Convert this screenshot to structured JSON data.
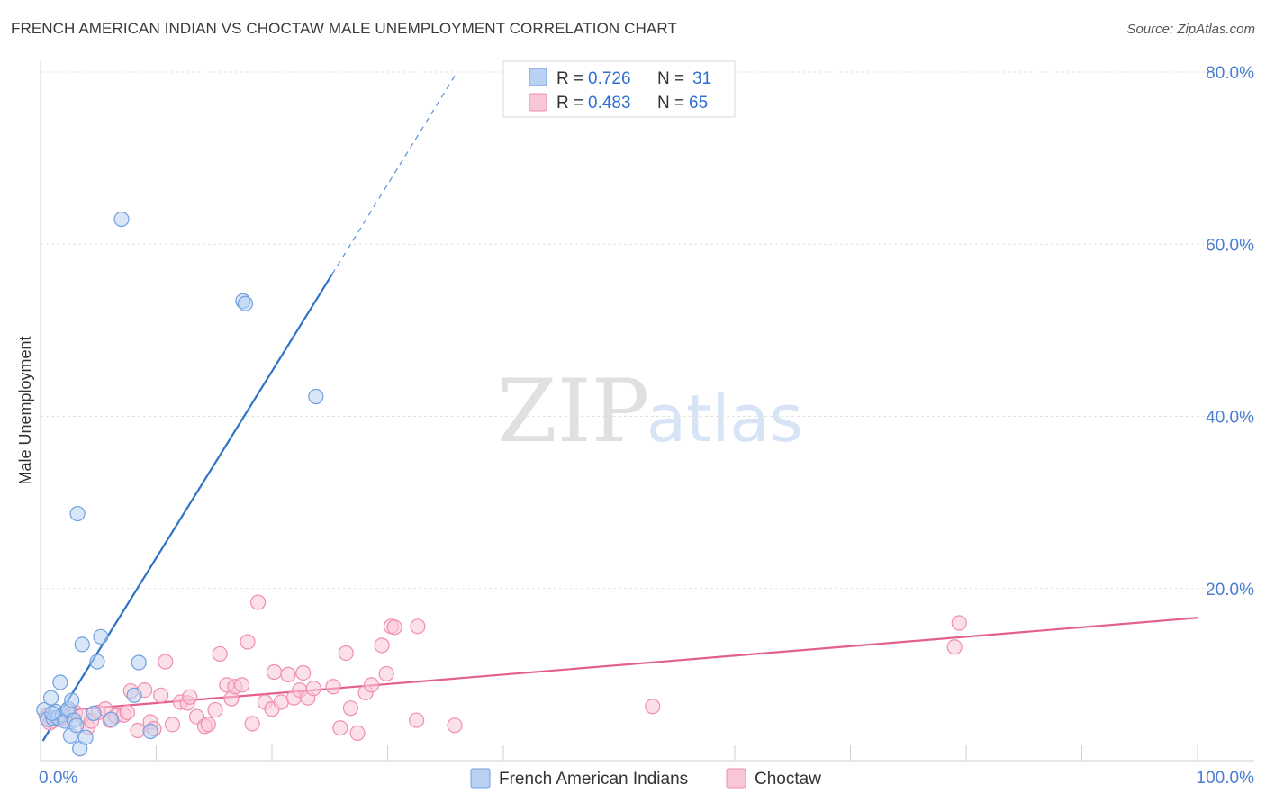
{
  "title": "FRENCH AMERICAN INDIAN VS CHOCTAW MALE UNEMPLOYMENT CORRELATION CHART",
  "source": "Source: ZipAtlas.com",
  "watermark": {
    "zip": "ZIP",
    "atlas": "atlas"
  },
  "chart_data": {
    "type": "scatter",
    "title": "FRENCH AMERICAN INDIAN VS CHOCTAW MALE UNEMPLOYMENT CORRELATION CHART",
    "xlabel": "",
    "ylabel": "Male Unemployment",
    "xlim": [
      0,
      100
    ],
    "ylim": [
      0,
      80
    ],
    "x_tick_labels": [
      "0.0%",
      "100.0%"
    ],
    "y_ticks": [
      20,
      40,
      60,
      80
    ],
    "y_tick_labels": [
      "20.0%",
      "40.0%",
      "60.0%",
      "80.0%"
    ],
    "grid": true,
    "legend": {
      "placement": "top-center",
      "entries": [
        {
          "r_label": "R = ",
          "r_value": "0.726",
          "n_label": "N = ",
          "n_value": "31"
        },
        {
          "r_label": "R = ",
          "r_value": "0.483",
          "n_label": "N = ",
          "n_value": "65"
        }
      ]
    },
    "series": [
      {
        "name": "French American Indians",
        "color": "#6fa0e0",
        "fill": "#b9d1f2",
        "line_color": "#2f73c9",
        "trend": {
          "x0": 0.2,
          "y0": 2.3,
          "x1": 25.2,
          "y1": 56.5,
          "dash_to_x": 36,
          "dash_to_y": 80
        },
        "points": [
          [
            0.3,
            5.9
          ],
          [
            0.6,
            4.8
          ],
          [
            0.9,
            7.3
          ],
          [
            1.1,
            4.9
          ],
          [
            1.3,
            5.7
          ],
          [
            1.5,
            5.0
          ],
          [
            1.7,
            9.1
          ],
          [
            1.9,
            5.3
          ],
          [
            2.1,
            4.6
          ],
          [
            2.3,
            5.8
          ],
          [
            2.4,
            6.0
          ],
          [
            2.6,
            2.9
          ],
          [
            2.7,
            7.0
          ],
          [
            2.9,
            4.7
          ],
          [
            3.1,
            4.1
          ],
          [
            3.2,
            28.7
          ],
          [
            3.4,
            1.4
          ],
          [
            3.6,
            13.5
          ],
          [
            3.9,
            2.7
          ],
          [
            4.6,
            5.5
          ],
          [
            4.9,
            11.5
          ],
          [
            5.2,
            14.4
          ],
          [
            6.1,
            4.8
          ],
          [
            7.0,
            62.9
          ],
          [
            8.1,
            7.6
          ],
          [
            8.5,
            11.4
          ],
          [
            9.5,
            3.4
          ],
          [
            17.5,
            53.4
          ],
          [
            17.7,
            53.1
          ],
          [
            23.8,
            42.3
          ],
          [
            1.0,
            5.5
          ]
        ]
      },
      {
        "name": "Choctaw",
        "color": "#f08db0",
        "fill": "#f9c6d6",
        "line_color": "#e4608c",
        "trend": {
          "x0": 0,
          "y0": 5.6,
          "x1": 100,
          "y1": 16.6
        },
        "points": [
          [
            0.5,
            5.2
          ],
          [
            1.0,
            4.6
          ],
          [
            1.6,
            4.8
          ],
          [
            2.2,
            4.9
          ],
          [
            3.0,
            5.6
          ],
          [
            3.6,
            5.2
          ],
          [
            4.1,
            3.9
          ],
          [
            4.4,
            4.6
          ],
          [
            5.0,
            5.6
          ],
          [
            5.6,
            6.0
          ],
          [
            6.0,
            4.7
          ],
          [
            6.5,
            5.2
          ],
          [
            7.2,
            5.3
          ],
          [
            7.5,
            5.6
          ],
          [
            7.8,
            8.1
          ],
          [
            8.4,
            3.5
          ],
          [
            9.0,
            8.2
          ],
          [
            9.5,
            4.5
          ],
          [
            9.8,
            3.7
          ],
          [
            10.4,
            7.6
          ],
          [
            10.8,
            11.5
          ],
          [
            11.4,
            4.2
          ],
          [
            12.1,
            6.8
          ],
          [
            12.7,
            6.7
          ],
          [
            12.9,
            7.4
          ],
          [
            13.5,
            5.1
          ],
          [
            14.2,
            4.0
          ],
          [
            14.5,
            4.2
          ],
          [
            15.1,
            5.9
          ],
          [
            15.5,
            12.4
          ],
          [
            16.1,
            8.8
          ],
          [
            16.5,
            7.2
          ],
          [
            16.8,
            8.6
          ],
          [
            17.4,
            8.8
          ],
          [
            17.9,
            13.8
          ],
          [
            18.3,
            4.3
          ],
          [
            18.8,
            18.4
          ],
          [
            19.4,
            6.8
          ],
          [
            20.0,
            6.0
          ],
          [
            20.2,
            10.3
          ],
          [
            20.8,
            6.8
          ],
          [
            21.4,
            10.0
          ],
          [
            21.9,
            7.3
          ],
          [
            22.4,
            8.2
          ],
          [
            22.7,
            10.2
          ],
          [
            23.1,
            7.3
          ],
          [
            23.6,
            8.4
          ],
          [
            25.3,
            8.6
          ],
          [
            25.9,
            3.8
          ],
          [
            26.4,
            12.5
          ],
          [
            26.8,
            6.1
          ],
          [
            27.4,
            3.2
          ],
          [
            28.1,
            7.9
          ],
          [
            28.6,
            8.8
          ],
          [
            29.5,
            13.4
          ],
          [
            29.9,
            10.1
          ],
          [
            30.3,
            15.6
          ],
          [
            30.6,
            15.5
          ],
          [
            32.5,
            4.7
          ],
          [
            32.6,
            15.6
          ],
          [
            35.8,
            4.1
          ],
          [
            52.9,
            6.3
          ],
          [
            79.0,
            13.2
          ],
          [
            79.4,
            16.0
          ],
          [
            0.8,
            4.4
          ]
        ]
      }
    ]
  }
}
